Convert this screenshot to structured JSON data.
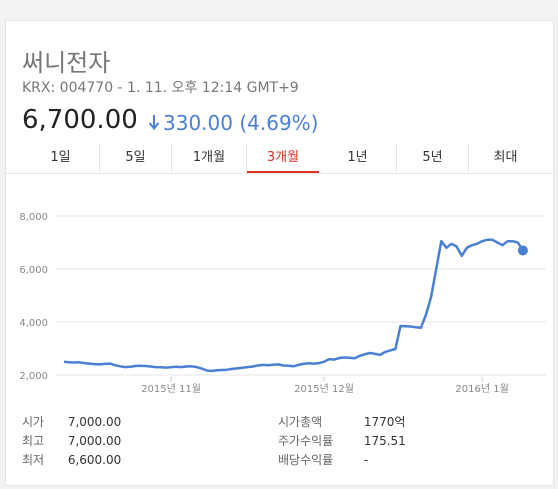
{
  "stock": {
    "name": "써니전자",
    "meta": "KRX: 004770 - 1. 11. 오후 12:14 GMT+9",
    "price": "6,700.00",
    "change": "330.00 (4.69%)",
    "change_direction": "down",
    "accent_color": "#4a7fd4"
  },
  "tabs": [
    {
      "label": "1일",
      "active": false
    },
    {
      "label": "5일",
      "active": false
    },
    {
      "label": "1개월",
      "active": false
    },
    {
      "label": "3개월",
      "active": true
    },
    {
      "label": "1년",
      "active": false
    },
    {
      "label": "5년",
      "active": false
    },
    {
      "label": "최대",
      "active": false
    }
  ],
  "chart_data": {
    "type": "line",
    "y_tick_labels": [
      "8,000",
      "6,000",
      "4,000",
      "2,000"
    ],
    "y_ticks": [
      8000,
      6000,
      4000,
      2000
    ],
    "ylim": [
      2000,
      8000
    ],
    "x_tick_labels": [
      "2015년 11월",
      "2015년 12월",
      "2016년 1월"
    ],
    "x_tick_positions": [
      21,
      51,
      82
    ],
    "xlim": [
      0,
      91
    ],
    "grid": true,
    "series": [
      {
        "color": "#4a7fd4",
        "points": [
          [
            0,
            2500
          ],
          [
            1,
            2480
          ],
          [
            2,
            2470
          ],
          [
            3,
            2480
          ],
          [
            4,
            2450
          ],
          [
            5,
            2430
          ],
          [
            6,
            2410
          ],
          [
            7,
            2400
          ],
          [
            8,
            2420
          ],
          [
            9,
            2430
          ],
          [
            10,
            2370
          ],
          [
            11,
            2330
          ],
          [
            12,
            2300
          ],
          [
            13,
            2310
          ],
          [
            14,
            2340
          ],
          [
            15,
            2350
          ],
          [
            16,
            2340
          ],
          [
            17,
            2320
          ],
          [
            18,
            2300
          ],
          [
            19,
            2290
          ],
          [
            20,
            2280
          ],
          [
            21,
            2300
          ],
          [
            22,
            2310
          ],
          [
            23,
            2300
          ],
          [
            24,
            2320
          ],
          [
            25,
            2330
          ],
          [
            26,
            2300
          ],
          [
            27,
            2240
          ],
          [
            28,
            2170
          ],
          [
            29,
            2150
          ],
          [
            30,
            2180
          ],
          [
            31,
            2190
          ],
          [
            32,
            2200
          ],
          [
            33,
            2230
          ],
          [
            34,
            2250
          ],
          [
            35,
            2270
          ],
          [
            36,
            2300
          ],
          [
            37,
            2320
          ],
          [
            38,
            2360
          ],
          [
            39,
            2380
          ],
          [
            40,
            2370
          ],
          [
            41,
            2390
          ],
          [
            42,
            2400
          ],
          [
            43,
            2360
          ],
          [
            44,
            2350
          ],
          [
            45,
            2330
          ],
          [
            46,
            2380
          ],
          [
            47,
            2420
          ],
          [
            48,
            2440
          ],
          [
            49,
            2430
          ],
          [
            50,
            2450
          ],
          [
            51,
            2500
          ],
          [
            52,
            2600
          ],
          [
            53,
            2580
          ],
          [
            54,
            2640
          ],
          [
            55,
            2660
          ],
          [
            56,
            2650
          ],
          [
            57,
            2630
          ],
          [
            58,
            2720
          ],
          [
            59,
            2780
          ],
          [
            60,
            2830
          ],
          [
            61,
            2800
          ],
          [
            62,
            2760
          ],
          [
            63,
            2870
          ],
          [
            64,
            2930
          ],
          [
            65,
            2980
          ],
          [
            66,
            3850
          ],
          [
            67,
            3840
          ],
          [
            68,
            3830
          ],
          [
            69,
            3800
          ],
          [
            70,
            3780
          ],
          [
            71,
            4280
          ],
          [
            72,
            4950
          ],
          [
            73,
            6000
          ],
          [
            74,
            7050
          ],
          [
            75,
            6800
          ],
          [
            76,
            6950
          ],
          [
            77,
            6850
          ],
          [
            78,
            6500
          ],
          [
            79,
            6800
          ],
          [
            80,
            6900
          ],
          [
            81,
            6950
          ],
          [
            82,
            7050
          ],
          [
            83,
            7100
          ],
          [
            84,
            7100
          ],
          [
            85,
            7000
          ],
          [
            86,
            6900
          ],
          [
            87,
            7050
          ],
          [
            88,
            7050
          ],
          [
            89,
            7000
          ],
          [
            90,
            6700
          ]
        ]
      }
    ]
  },
  "stats": {
    "left": [
      {
        "label": "시가",
        "value": "7,000.00"
      },
      {
        "label": "최고",
        "value": "7,000.00"
      },
      {
        "label": "최저",
        "value": "6,600.00"
      }
    ],
    "right": [
      {
        "label": "시가총액",
        "value": "1770억"
      },
      {
        "label": "주가수익률",
        "value": "175.51"
      },
      {
        "label": "배당수익률",
        "value": "-"
      }
    ]
  }
}
